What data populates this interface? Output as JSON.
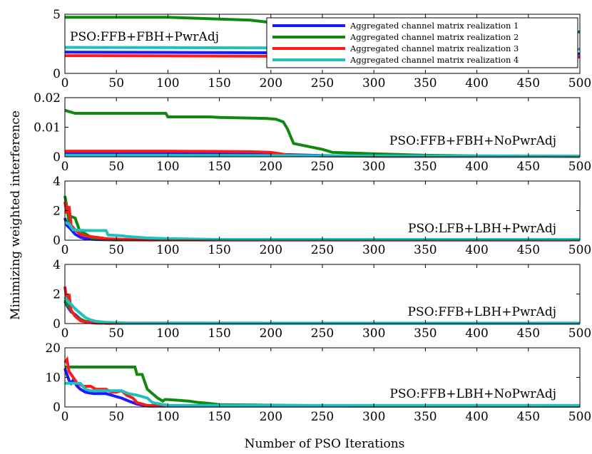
{
  "figure": {
    "xlabel": "Number of PSO Iterations",
    "ylabel": "Minimizing weighted interference"
  },
  "legend": {
    "entries": [
      {
        "label": "Aggregated channel matrix realization 1",
        "color": "#1a1aff"
      },
      {
        "label": "Aggregated channel matrix realization 2",
        "color": "#0f8a0f"
      },
      {
        "label": "Aggregated channel matrix realization 3",
        "color": "#ff1a1a"
      },
      {
        "label": "Aggregated channel matrix realization 4",
        "color": "#1ec0c0"
      }
    ],
    "placement": "top-right of first panel"
  },
  "chart_data": [
    {
      "type": "line",
      "title": "PSO:FFB+FBH+PwrAdj",
      "xlim": [
        0,
        500
      ],
      "ylim": [
        0,
        5
      ],
      "xticks": [
        0,
        50,
        100,
        150,
        200,
        250,
        300,
        350,
        400,
        450,
        500
      ],
      "yticks": [
        "0",
        "5"
      ],
      "series": [
        {
          "name": "Aggregated channel matrix realization 1",
          "color": "#1a1aff",
          "x": [
            0,
            100,
            200,
            300,
            400,
            500
          ],
          "y": [
            1.8,
            1.78,
            1.75,
            1.7,
            1.68,
            1.65
          ]
        },
        {
          "name": "Aggregated channel matrix realization 2",
          "color": "#0f8a0f",
          "x": [
            0,
            100,
            130,
            180,
            210,
            260,
            300,
            400,
            500
          ],
          "y": [
            4.75,
            4.75,
            4.65,
            4.5,
            4.2,
            4.0,
            3.85,
            3.7,
            3.5
          ]
        },
        {
          "name": "Aggregated channel matrix realization 3",
          "color": "#ff1a1a",
          "x": [
            0,
            100,
            200,
            300,
            400,
            500
          ],
          "y": [
            1.5,
            1.48,
            1.45,
            1.42,
            1.4,
            1.38
          ]
        },
        {
          "name": "Aggregated channel matrix realization 4",
          "color": "#1ec0c0",
          "x": [
            0,
            100,
            200,
            300,
            400,
            500
          ],
          "y": [
            2.2,
            2.18,
            2.15,
            2.1,
            2.08,
            2.05
          ]
        }
      ]
    },
    {
      "type": "line",
      "title": "PSO:FFB+FBH+NoPwrAdj",
      "xlim": [
        0,
        500
      ],
      "ylim": [
        0,
        0.02
      ],
      "xticks": [
        0,
        50,
        100,
        150,
        200,
        250,
        300,
        350,
        400,
        450,
        500
      ],
      "yticks": [
        "0",
        "0.01",
        "0.02"
      ],
      "series": [
        {
          "name": "Aggregated channel matrix realization 1",
          "color": "#1a1aff",
          "x": [
            0,
            100,
            150,
            200,
            250,
            300,
            500
          ],
          "y": [
            0.0012,
            0.0012,
            0.0011,
            0.0009,
            0.0004,
            0.0002,
            0.0001
          ]
        },
        {
          "name": "Aggregated channel matrix realization 2",
          "color": "#0f8a0f",
          "x": [
            0,
            5,
            10,
            98,
            100,
            140,
            150,
            195,
            205,
            212,
            216,
            222,
            250,
            260,
            300,
            350,
            400,
            500
          ],
          "y": [
            0.0157,
            0.0152,
            0.0147,
            0.0147,
            0.0135,
            0.0135,
            0.0133,
            0.013,
            0.0127,
            0.0118,
            0.0095,
            0.0045,
            0.0025,
            0.0015,
            0.001,
            0.0005,
            0.0003,
            0.0002
          ]
        },
        {
          "name": "Aggregated channel matrix realization 3",
          "color": "#ff1a1a",
          "x": [
            0,
            100,
            150,
            180,
            200,
            210,
            216,
            250,
            300,
            500
          ],
          "y": [
            0.0019,
            0.0019,
            0.0018,
            0.0017,
            0.0015,
            0.001,
            0.0005,
            0.0003,
            0.0002,
            0.0001
          ]
        },
        {
          "name": "Aggregated channel matrix realization 4",
          "color": "#1ec0c0",
          "x": [
            0,
            100,
            200,
            300,
            500
          ],
          "y": [
            0.0005,
            0.0005,
            0.0004,
            0.0003,
            0.0002
          ]
        }
      ]
    },
    {
      "type": "line",
      "title": "PSO:LFB+LBH+PwrAdj",
      "xlim": [
        0,
        500
      ],
      "ylim": [
        0,
        4
      ],
      "xticks": [
        0,
        50,
        100,
        150,
        200,
        250,
        300,
        350,
        400,
        450,
        500
      ],
      "yticks": [
        "0",
        "2",
        "4"
      ],
      "series": [
        {
          "name": "Aggregated channel matrix realization 1",
          "color": "#1a1aff",
          "x": [
            0,
            2,
            5,
            10,
            15,
            20,
            30,
            50,
            500
          ],
          "y": [
            1.5,
            1.0,
            0.8,
            0.4,
            0.2,
            0.1,
            0.05,
            0.02,
            0.02
          ]
        },
        {
          "name": "Aggregated channel matrix realization 2",
          "color": "#0f8a0f",
          "x": [
            0,
            2,
            4,
            6,
            10,
            14,
            18,
            22,
            25,
            30,
            40,
            60,
            500
          ],
          "y": [
            3.0,
            2.2,
            1.2,
            1.6,
            1.5,
            0.7,
            0.5,
            0.35,
            0.2,
            0.1,
            0.05,
            0.02,
            0.02
          ]
        },
        {
          "name": "Aggregated channel matrix realization 3",
          "color": "#ff1a1a",
          "x": [
            0,
            2,
            4,
            6,
            10,
            15,
            20,
            30,
            40,
            60,
            80,
            500
          ],
          "y": [
            2.6,
            1.8,
            2.3,
            1.0,
            0.7,
            0.4,
            0.3,
            0.2,
            0.1,
            0.05,
            0.02,
            0.02
          ]
        },
        {
          "name": "Aggregated channel matrix realization 4",
          "color": "#1ec0c0",
          "x": [
            0,
            4,
            8,
            20,
            40,
            42,
            55,
            60,
            70,
            80,
            100,
            150,
            500
          ],
          "y": [
            1.2,
            1.1,
            0.7,
            0.65,
            0.65,
            0.35,
            0.3,
            0.25,
            0.2,
            0.15,
            0.1,
            0.05,
            0.05
          ]
        }
      ]
    },
    {
      "type": "line",
      "title": "PSO:FFB+LBH+PwrAdj",
      "xlim": [
        0,
        500
      ],
      "ylim": [
        0,
        4
      ],
      "xticks": [
        0,
        50,
        100,
        150,
        200,
        250,
        300,
        350,
        400,
        450,
        500
      ],
      "yticks": [
        "0",
        "2",
        "4"
      ],
      "series": [
        {
          "name": "Aggregated channel matrix realization 1",
          "color": "#1a1aff",
          "x": [
            0,
            3,
            6,
            10,
            15,
            20,
            30,
            40,
            500
          ],
          "y": [
            1.5,
            1.1,
            0.8,
            0.6,
            0.3,
            0.15,
            0.05,
            0.02,
            0.02
          ]
        },
        {
          "name": "Aggregated channel matrix realization 2",
          "color": "#0f8a0f",
          "x": [
            0,
            3,
            6,
            10,
            15,
            20,
            30,
            40,
            500
          ],
          "y": [
            1.6,
            1.2,
            0.9,
            0.5,
            0.3,
            0.15,
            0.05,
            0.02,
            0.02
          ]
        },
        {
          "name": "Aggregated channel matrix realization 3",
          "color": "#ff1a1a",
          "x": [
            0,
            2,
            4,
            6,
            10,
            15,
            20,
            30,
            500
          ],
          "y": [
            2.5,
            1.5,
            2.0,
            0.9,
            0.5,
            0.2,
            0.1,
            0.03,
            0.02
          ]
        },
        {
          "name": "Aggregated channel matrix realization 4",
          "color": "#1ec0c0",
          "x": [
            0,
            3,
            6,
            10,
            15,
            20,
            25,
            30,
            40,
            60,
            100,
            500
          ],
          "y": [
            1.8,
            1.5,
            1.3,
            1.0,
            0.7,
            0.4,
            0.25,
            0.15,
            0.08,
            0.04,
            0.03,
            0.03
          ]
        }
      ]
    },
    {
      "type": "line",
      "title": "PSO:FFB+LBH+NoPwrAdj",
      "xlim": [
        0,
        500
      ],
      "ylim": [
        0,
        20
      ],
      "xticks": [
        0,
        50,
        100,
        150,
        200,
        250,
        300,
        350,
        400,
        450,
        500
      ],
      "yticks": [
        "0",
        "10",
        "20"
      ],
      "series": [
        {
          "name": "Aggregated channel matrix realization 1",
          "color": "#1a1aff",
          "x": [
            0,
            2,
            4,
            6,
            8,
            12,
            15,
            20,
            28,
            40,
            50,
            55,
            62,
            70,
            80,
            500
          ],
          "y": [
            13,
            11,
            9,
            8,
            9,
            7,
            6,
            5,
            4.5,
            4.5,
            3.5,
            3,
            2,
            1,
            0.3,
            0.3
          ]
        },
        {
          "name": "Aggregated channel matrix realization 2",
          "color": "#0f8a0f",
          "x": [
            0,
            68,
            70,
            75,
            80,
            90,
            95,
            97,
            100,
            120,
            130,
            140,
            150,
            200,
            250,
            300,
            500
          ],
          "y": [
            13.5,
            13.5,
            11,
            11,
            6,
            3,
            2,
            2.5,
            2.5,
            2.0,
            1.5,
            1.2,
            0.8,
            0.6,
            0.4,
            0.3,
            0.3
          ]
        },
        {
          "name": "Aggregated channel matrix realization 3",
          "color": "#ff1a1a",
          "x": [
            0,
            2,
            4,
            8,
            12,
            18,
            25,
            30,
            40,
            45,
            50,
            55,
            60,
            66,
            70,
            80,
            500
          ],
          "y": [
            15,
            16,
            12,
            10,
            8,
            7,
            7,
            6,
            6,
            5,
            5,
            5.5,
            4,
            3,
            1.5,
            0.5,
            0.3
          ]
        },
        {
          "name": "Aggregated channel matrix realization 4",
          "color": "#1ec0c0",
          "x": [
            0,
            5,
            15,
            20,
            25,
            30,
            40,
            55,
            62,
            70,
            80,
            85,
            100,
            500
          ],
          "y": [
            8,
            8,
            8,
            6,
            5.5,
            5.5,
            5.5,
            5.5,
            4.5,
            4,
            3,
            1.5,
            0.5,
            0.5
          ]
        }
      ]
    }
  ]
}
